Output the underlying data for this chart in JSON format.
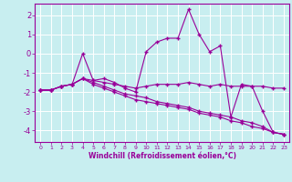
{
  "xlabel": "Windchill (Refroidissement éolien,°C)",
  "bg_color": "#c8eef0",
  "grid_color": "#ffffff",
  "line_color": "#990099",
  "x_ticks": [
    0,
    1,
    2,
    3,
    4,
    5,
    6,
    7,
    8,
    9,
    10,
    11,
    12,
    13,
    14,
    15,
    16,
    17,
    18,
    19,
    20,
    21,
    22,
    23
  ],
  "y_ticks": [
    -4,
    -3,
    -2,
    -1,
    0,
    1,
    2
  ],
  "ylim": [
    -4.6,
    2.6
  ],
  "xlim": [
    -0.5,
    23.5
  ],
  "line1_x": [
    0,
    1,
    2,
    3,
    4,
    5,
    6,
    7,
    8,
    9,
    10,
    11,
    12,
    13,
    14,
    15,
    16,
    17,
    18,
    19,
    20,
    21,
    22,
    23
  ],
  "line1_y": [
    -1.9,
    -1.9,
    -1.7,
    -1.6,
    0.0,
    -1.4,
    -1.3,
    -1.5,
    -1.8,
    -2.0,
    0.1,
    0.6,
    0.8,
    0.8,
    2.3,
    1.0,
    0.1,
    0.4,
    -3.3,
    -1.6,
    -1.7,
    -3.0,
    -4.1,
    -4.2
  ],
  "line2_x": [
    0,
    1,
    2,
    3,
    4,
    5,
    6,
    7,
    8,
    9,
    10,
    11,
    12,
    13,
    14,
    15,
    16,
    17,
    18,
    19,
    20,
    21,
    22,
    23
  ],
  "line2_y": [
    -1.9,
    -1.9,
    -1.7,
    -1.6,
    -1.3,
    -1.4,
    -1.5,
    -1.6,
    -1.7,
    -1.8,
    -1.7,
    -1.6,
    -1.6,
    -1.6,
    -1.5,
    -1.6,
    -1.7,
    -1.6,
    -1.7,
    -1.7,
    -1.7,
    -1.7,
    -1.8,
    -1.8
  ],
  "line3_x": [
    0,
    1,
    2,
    3,
    4,
    5,
    6,
    7,
    8,
    9,
    10,
    11,
    12,
    13,
    14,
    15,
    16,
    17,
    18,
    19,
    20,
    21,
    22,
    23
  ],
  "line3_y": [
    -1.9,
    -1.9,
    -1.7,
    -1.6,
    -1.3,
    -1.5,
    -1.7,
    -1.9,
    -2.1,
    -2.2,
    -2.3,
    -2.5,
    -2.6,
    -2.7,
    -2.8,
    -3.0,
    -3.1,
    -3.2,
    -3.3,
    -3.5,
    -3.6,
    -3.8,
    -4.1,
    -4.2
  ],
  "line4_x": [
    0,
    1,
    2,
    3,
    4,
    5,
    6,
    7,
    8,
    9,
    10,
    11,
    12,
    13,
    14,
    15,
    16,
    17,
    18,
    19,
    20,
    21,
    22,
    23
  ],
  "line4_y": [
    -1.9,
    -1.9,
    -1.7,
    -1.6,
    -1.3,
    -1.6,
    -1.8,
    -2.0,
    -2.2,
    -2.4,
    -2.5,
    -2.6,
    -2.7,
    -2.8,
    -2.9,
    -3.1,
    -3.2,
    -3.3,
    -3.5,
    -3.6,
    -3.8,
    -3.9,
    -4.1,
    -4.2
  ]
}
